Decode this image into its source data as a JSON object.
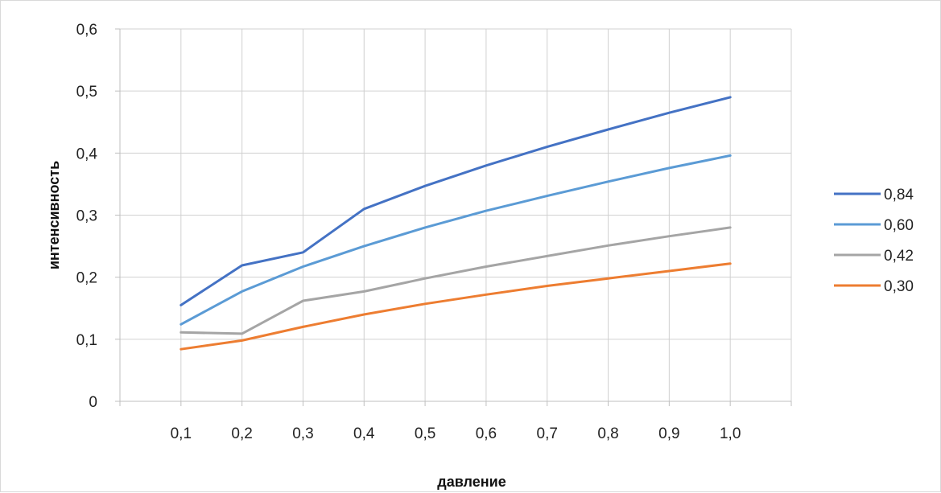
{
  "chart_data": {
    "type": "line",
    "title": "",
    "xlabel": "давление",
    "ylabel": "интенсивность",
    "categories": [
      "0,1",
      "0,2",
      "0,3",
      "0,4",
      "0,5",
      "0,6",
      "0,7",
      "0,8",
      "0,9",
      "1,0"
    ],
    "y_ticks": [
      "0",
      "0,1",
      "0,2",
      "0,3",
      "0,4",
      "0,5",
      "0,6"
    ],
    "ylim": [
      0,
      0.6
    ],
    "grid": true,
    "legend_position": "right",
    "series": [
      {
        "name": "0,84",
        "color": "#4472c4",
        "values": [
          0.155,
          0.219,
          0.24,
          0.31,
          0.347,
          0.38,
          0.41,
          0.438,
          0.465,
          0.49
        ]
      },
      {
        "name": "0,60",
        "color": "#5b9bd5",
        "values": [
          0.124,
          0.177,
          0.217,
          0.25,
          0.28,
          0.307,
          0.331,
          0.354,
          0.376,
          0.396
        ]
      },
      {
        "name": "0,42",
        "color": "#a5a5a5",
        "values": [
          0.111,
          0.109,
          0.162,
          0.177,
          0.198,
          0.217,
          0.234,
          0.251,
          0.266,
          0.28
        ]
      },
      {
        "name": "0,30",
        "color": "#ed7d31",
        "values": [
          0.084,
          0.098,
          0.12,
          0.14,
          0.157,
          0.172,
          0.186,
          0.198,
          0.21,
          0.222
        ]
      }
    ]
  }
}
